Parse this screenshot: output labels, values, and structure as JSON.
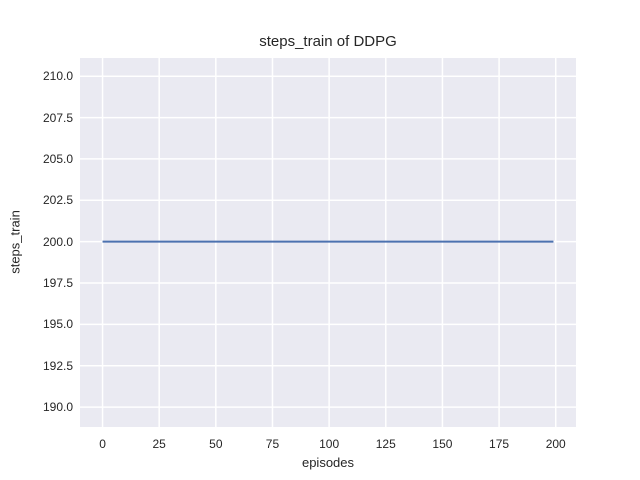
{
  "chart_data": {
    "type": "line",
    "title": "steps_train of DDPG",
    "xlabel": "episodes",
    "ylabel": "steps_train",
    "xlim": [
      -9.95,
      208.95
    ],
    "ylim": [
      188.8,
      211.1
    ],
    "xticks": [
      0,
      25,
      50,
      75,
      100,
      125,
      150,
      175,
      200
    ],
    "xtick_labels": [
      "0",
      "25",
      "50",
      "75",
      "100",
      "125",
      "150",
      "175",
      "200"
    ],
    "yticks": [
      190.0,
      192.5,
      195.0,
      197.5,
      200.0,
      202.5,
      205.0,
      207.5,
      210.0
    ],
    "ytick_labels": [
      "190.0",
      "192.5",
      "195.0",
      "197.5",
      "200.0",
      "202.5",
      "205.0",
      "207.5",
      "210.0"
    ],
    "grid": true,
    "legend": "none",
    "style": {
      "figure_bg": "#ffffff",
      "plot_bg": "#eaeaf2",
      "grid_color": "#ffffff",
      "text_color": "#262626",
      "line_color": "#4c72b0",
      "line_width": 2
    },
    "series": [
      {
        "name": "steps_train",
        "x": [
          0,
          199
        ],
        "y": [
          200,
          200
        ]
      }
    ]
  }
}
